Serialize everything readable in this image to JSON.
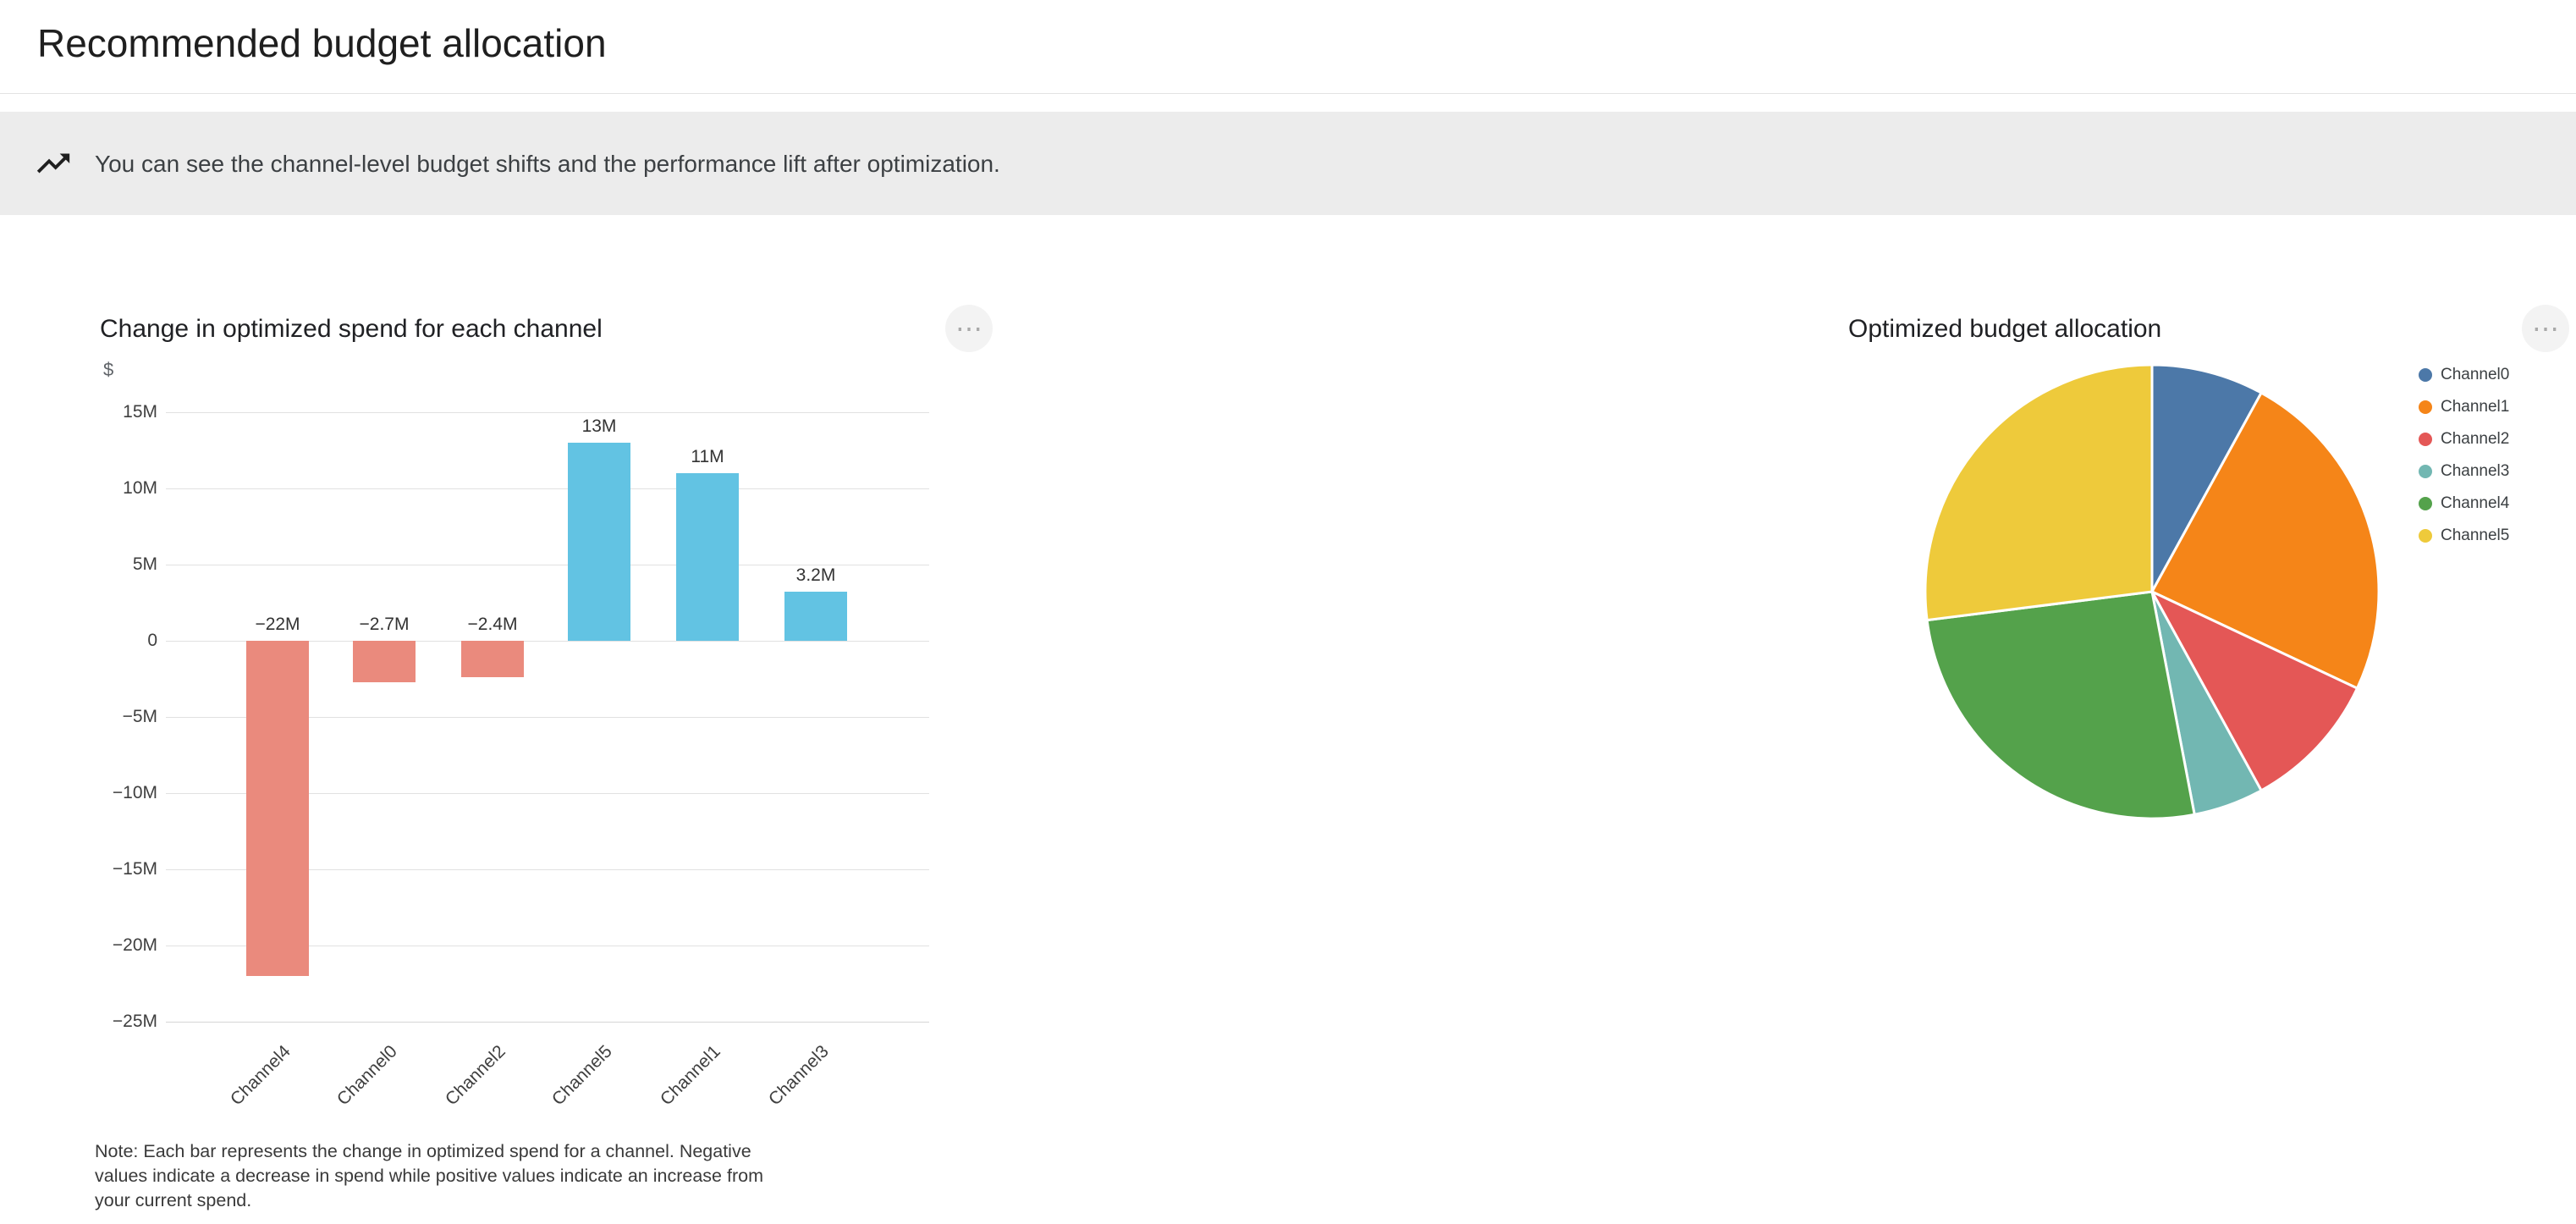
{
  "header": {
    "title": "Recommended budget allocation"
  },
  "banner": {
    "icon": "trending-up-icon",
    "message": "You can see the channel-level budget shifts and the performance lift after optimization."
  },
  "icons": {
    "more_options_glyph": "⋯"
  },
  "bar_chart_card": {
    "title": "Change in optimized spend for each channel",
    "y_axis_title": "$",
    "note": "Note: Each bar represents the change in optimized spend for a channel. Negative values indicate a decrease in spend while positive values indicate an increase from your current spend."
  },
  "pie_chart_card": {
    "title": "Optimized budget allocation"
  },
  "chart_data": [
    {
      "type": "bar",
      "title": "Change in optimized spend for each channel",
      "categories": [
        "Channel4",
        "Channel0",
        "Channel2",
        "Channel5",
        "Channel1",
        "Channel3"
      ],
      "values": [
        -22,
        -2.7,
        -2.4,
        13,
        11,
        3.2
      ],
      "bar_labels": [
        "−22M",
        "−2.7M",
        "−2.4M",
        "13M",
        "11M",
        "3.2M"
      ],
      "unit": "M USD",
      "xlabel": "",
      "ylabel": "$",
      "ylim": [
        -25,
        15
      ],
      "y_ticks": [
        15,
        10,
        5,
        0,
        -5,
        -10,
        -15,
        -20,
        -25
      ],
      "y_tick_labels": [
        "15M",
        "10M",
        "5M",
        "0",
        "−5M",
        "−10M",
        "−15M",
        "−20M",
        "−25M"
      ],
      "grid": true,
      "x_label_rotation": -45,
      "colors": {
        "positive": "#62c3e3",
        "negative": "#ea8a7d"
      }
    },
    {
      "type": "pie",
      "title": "Optimized budget allocation",
      "categories": [
        "Channel0",
        "Channel1",
        "Channel2",
        "Channel3",
        "Channel4",
        "Channel5"
      ],
      "values": [
        8,
        24,
        10,
        5,
        26,
        27
      ],
      "unit": "% of total budget (estimated from slice angles)",
      "start_angle": "top",
      "direction": "clockwise",
      "legend_position": "right",
      "colors": [
        "#4c78a8",
        "#f58518",
        "#e45756",
        "#72b7b2",
        "#54a24b",
        "#eeca3b"
      ]
    }
  ]
}
